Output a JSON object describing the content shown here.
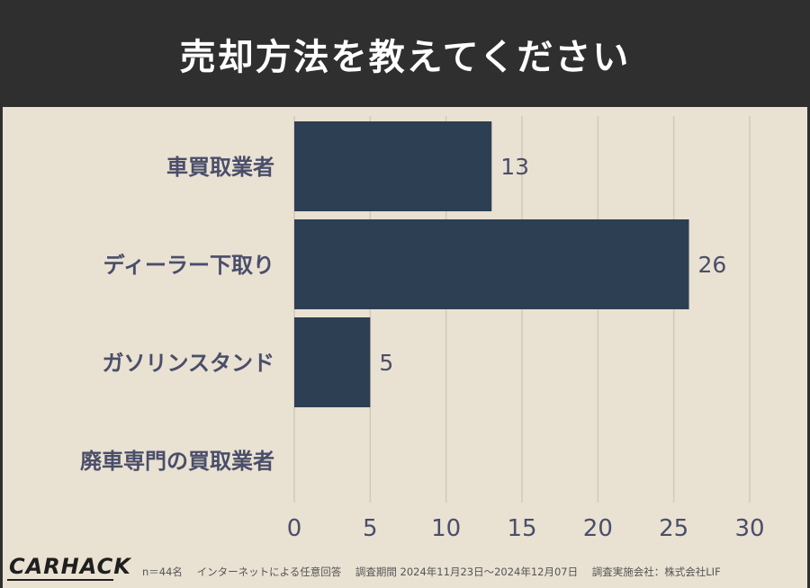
{
  "header": {
    "title": "売却方法を教えてください"
  },
  "chart_data": {
    "type": "bar",
    "orientation": "horizontal",
    "categories": [
      "車買取業者",
      "ディーラー下取り",
      "ガソリンスタンド",
      "廃車専門の買取業者"
    ],
    "values": [
      13,
      26,
      5,
      0
    ],
    "data_labels": [
      "13",
      "26",
      "5",
      ""
    ],
    "xlim": [
      0,
      30
    ],
    "xticks": [
      "0",
      "5",
      "10",
      "15",
      "20",
      "25",
      "30"
    ],
    "grid": true,
    "bar_color": "#2d3f53",
    "title": "",
    "xlabel": "",
    "ylabel": ""
  },
  "footer": {
    "logo": "CARHACK",
    "sample": "n＝44名",
    "method": "インターネットによる任意回答",
    "period": "調査期間 2024年11月23日〜2024年12月07日",
    "company": "調査実施会社：株式会社LIF"
  }
}
